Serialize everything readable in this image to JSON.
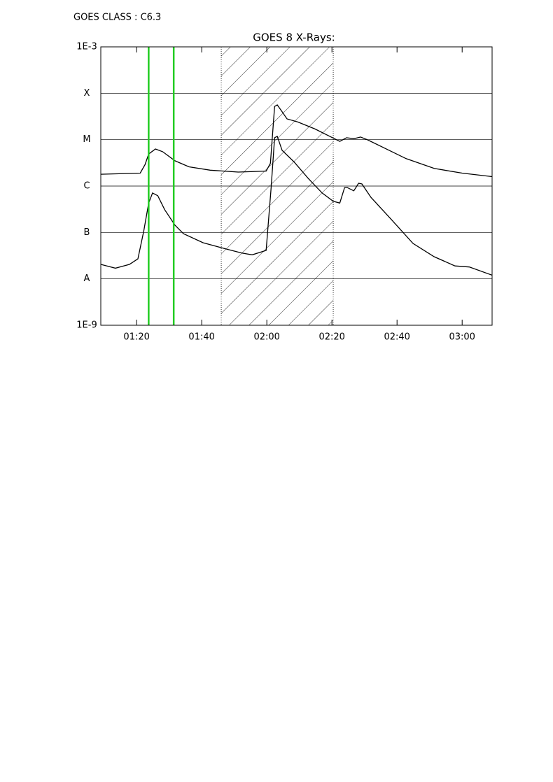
{
  "chart_data": {
    "type": "line",
    "header": "GOES CLASS : C6.3",
    "title": "GOES 8 X-Rays:",
    "log_y": true,
    "grid": true,
    "xlim": [
      69,
      189.2
    ],
    "xticks": [
      {
        "value": 80,
        "label": "01:20"
      },
      {
        "value": 100,
        "label": "01:40"
      },
      {
        "value": 120,
        "label": "02:00"
      },
      {
        "value": 140,
        "label": "02:20"
      },
      {
        "value": 160,
        "label": "02:40"
      },
      {
        "value": 180,
        "label": "03:00"
      }
    ],
    "ylim": [
      1e-09,
      0.001
    ],
    "yticks": [
      {
        "value": 1e-09,
        "label": "1E-9"
      },
      {
        "value": 1e-08,
        "label": "A"
      },
      {
        "value": 1e-07,
        "label": "B"
      },
      {
        "value": 1e-06,
        "label": "C"
      },
      {
        "value": 1e-05,
        "label": "M"
      },
      {
        "value": 0.0001,
        "label": "X"
      },
      {
        "value": 0.001,
        "label": "1E-3"
      }
    ],
    "vlines": [
      83.7,
      91.4
    ],
    "vline_color": "#22cc22",
    "shaded_span": [
      106,
      140.4
    ],
    "series": [
      {
        "color": "#000000",
        "x": [
          69.0,
          81.1,
          82.6,
          83.7,
          85.8,
          88.0,
          91.8,
          96.1,
          102.6,
          111.2,
          119.8,
          121.1,
          122.4,
          123.2,
          124.7,
          126.2,
          129.5,
          134.8,
          140.2,
          142.4,
          144.5,
          146.7,
          148.8,
          151.0,
          156.3,
          162.8,
          171.4,
          180.0,
          189.2
        ],
        "values": [
          1.8e-06,
          1.9e-06,
          2.9e-06,
          4.9e-06,
          6.3e-06,
          5.5e-06,
          3.5e-06,
          2.6e-06,
          2.2e-06,
          2e-06,
          2.1e-06,
          3.1e-06,
          5.2e-05,
          5.6e-05,
          4e-05,
          2.8e-05,
          2.4e-05,
          1.7e-05,
          1.1e-05,
          9.2e-06,
          1.1e-05,
          1.05e-05,
          1.14e-05,
          9.9e-06,
          6.5e-06,
          3.9e-06,
          2.4e-06,
          1.9e-06,
          1.6e-06
        ]
      },
      {
        "color": "#000000",
        "x": [
          69.0,
          73.5,
          77.8,
          80.4,
          82.2,
          83.7,
          84.9,
          86.5,
          88.6,
          91.8,
          94.4,
          100.4,
          106.9,
          112.3,
          115.5,
          119.8,
          121.3,
          122.4,
          123.2,
          124.7,
          128.4,
          132.7,
          137.0,
          140.4,
          142.4,
          143.9,
          144.7,
          146.7,
          148.2,
          149.2,
          152.0,
          158.5,
          164.9,
          171.4,
          177.8,
          182.2,
          189.2
        ],
        "values": [
          2.05e-08,
          1.7e-08,
          2.05e-08,
          2.7e-08,
          1.08e-07,
          4.3e-07,
          7.1e-07,
          6.2e-07,
          3.1e-07,
          1.43e-07,
          9.4e-08,
          6e-08,
          4.5e-08,
          3.6e-08,
          3.3e-08,
          4.1e-08,
          8.7e-07,
          1.1e-05,
          1.18e-05,
          5.9e-06,
          3.3e-06,
          1.47e-06,
          7.1e-07,
          4.7e-07,
          4.3e-07,
          9.3e-07,
          9.3e-07,
          7.9e-07,
          1.15e-06,
          1.11e-06,
          5.7e-07,
          1.82e-07,
          5.8e-08,
          3e-08,
          1.9e-08,
          1.8e-08,
          1.2e-08
        ]
      }
    ]
  }
}
